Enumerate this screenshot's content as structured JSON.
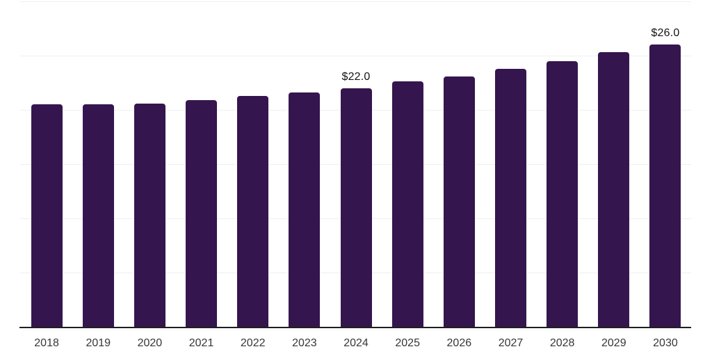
{
  "chart_data": {
    "type": "bar",
    "title": "",
    "xlabel": "",
    "ylabel": "",
    "categories": [
      "2018",
      "2019",
      "2020",
      "2021",
      "2022",
      "2023",
      "2024",
      "2025",
      "2026",
      "2027",
      "2028",
      "2029",
      "2030"
    ],
    "values": [
      20.5,
      20.5,
      20.6,
      20.9,
      21.3,
      21.6,
      22.0,
      22.6,
      23.1,
      23.8,
      24.5,
      25.3,
      26.0
    ],
    "annotations": [
      {
        "category": "2024",
        "text": "$22.0"
      },
      {
        "category": "2030",
        "text": "$26.0"
      }
    ],
    "ylim": [
      0,
      30
    ],
    "gridline_values": [
      5,
      10,
      15,
      20,
      25,
      30
    ],
    "grid": "horizontal-only",
    "legend": "none",
    "y_axis_labels_visible": false,
    "colors": {
      "bar": "#35154E",
      "axis_line": "#1f1f1f",
      "gridline": "#efefef",
      "tick_label": "#363636",
      "value_label": "#141414",
      "background": "#ffffff"
    }
  }
}
